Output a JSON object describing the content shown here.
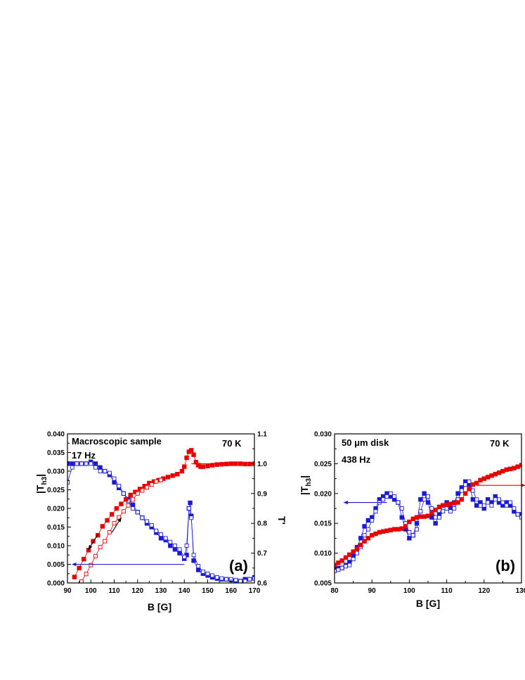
{
  "chart_data": [
    {
      "type": "scatter",
      "panel_label": "(a)",
      "annotations": [
        "Macroscopic sample",
        "17 Hz",
        "70 K"
      ],
      "xlabel": "B [G]",
      "ylabel_left": "|T",
      "ylabel_left_sub": "h3",
      "ylabel_left_end": "|",
      "ylabel_right": "T'",
      "xlim": [
        90,
        170
      ],
      "ylim_left": [
        0.0,
        0.04
      ],
      "ylim_right": [
        0.6,
        1.1
      ],
      "xticks": [
        "90",
        "100",
        "110",
        "120",
        "130",
        "140",
        "150",
        "160",
        "170"
      ],
      "yticks_left": [
        "0.000",
        "0.005",
        "0.010",
        "0.015",
        "0.020",
        "0.025",
        "0.030",
        "0.035",
        "0.040"
      ],
      "yticks_right": [
        "0.6",
        "0.7",
        "0.8",
        "0.9",
        "1.0",
        "1.1"
      ],
      "series": [
        {
          "axis": "left",
          "color": "#1a1ad6",
          "marker": "filled-square",
          "x": [
            90,
            92,
            94,
            96,
            98,
            100,
            102,
            104,
            106,
            108,
            110,
            112,
            114,
            116,
            118,
            120,
            122,
            124,
            126,
            128,
            130,
            132,
            134,
            136,
            138,
            140,
            141,
            142,
            142.5,
            143,
            144,
            146,
            148,
            150,
            152,
            154,
            156,
            158,
            160,
            162,
            164,
            166,
            168,
            170
          ],
          "y": [
            0.032,
            0.032,
            0.032,
            0.032,
            0.032,
            0.0325,
            0.032,
            0.031,
            0.03,
            0.029,
            0.027,
            0.0255,
            0.024,
            0.0225,
            0.021,
            0.019,
            0.0175,
            0.016,
            0.015,
            0.0135,
            0.012,
            0.0115,
            0.01,
            0.009,
            0.008,
            0.0065,
            0.0075,
            0.02,
            0.0215,
            0.018,
            0.006,
            0.0035,
            0.0025,
            0.002,
            0.0015,
            0.0012,
            0.001,
            0.001,
            0.0008,
            0.0005,
            0.0005,
            0.001,
            0.001,
            0.0015
          ]
        },
        {
          "axis": "left",
          "color": "#1a1ad6",
          "marker": "open-square",
          "x": [
            90,
            92,
            94,
            96,
            98,
            100,
            102,
            104,
            106,
            108,
            110,
            112,
            114,
            116,
            118,
            120,
            122,
            124,
            126,
            128,
            130,
            132,
            134,
            136,
            138,
            140,
            141,
            142,
            143,
            144,
            146,
            148,
            150,
            152,
            154,
            156,
            158,
            160,
            162,
            164,
            166,
            168,
            170
          ],
          "y": [
            0.027,
            0.031,
            0.032,
            0.032,
            0.032,
            0.032,
            0.031,
            0.03,
            0.03,
            0.0295,
            0.028,
            0.026,
            0.024,
            0.022,
            0.02,
            0.019,
            0.0175,
            0.0165,
            0.0155,
            0.014,
            0.013,
            0.012,
            0.011,
            0.01,
            0.009,
            0.007,
            0.01,
            0.02,
            0.0175,
            0.0075,
            0.0045,
            0.003,
            0.0025,
            0.002,
            0.0015,
            0.0012,
            0.001,
            0.001,
            0.0008,
            0.0005,
            0.0005,
            0.001,
            0.0012
          ]
        },
        {
          "axis": "right",
          "color": "#e60000",
          "marker": "filled-square",
          "x": [
            93,
            95,
            97,
            99,
            101,
            103,
            105,
            107,
            109,
            111,
            113,
            115,
            117,
            119,
            121,
            123,
            125,
            127,
            129,
            131,
            133,
            135,
            137,
            139,
            140,
            141,
            142,
            143,
            144,
            145,
            146,
            147,
            148,
            150,
            152,
            154,
            156,
            158,
            160,
            162,
            164,
            166,
            168,
            170
          ],
          "y": [
            0.62,
            0.65,
            0.68,
            0.71,
            0.74,
            0.76,
            0.79,
            0.81,
            0.83,
            0.85,
            0.865,
            0.88,
            0.895,
            0.905,
            0.915,
            0.925,
            0.935,
            0.94,
            0.945,
            0.95,
            0.955,
            0.96,
            0.965,
            0.975,
            0.99,
            1.02,
            1.04,
            1.045,
            1.03,
            1.005,
            0.995,
            0.99,
            0.99,
            0.992,
            0.995,
            0.997,
            0.998,
            0.999,
            1.0,
            1.0,
            1.0,
            0.999,
            0.999,
            1.0
          ]
        },
        {
          "axis": "right",
          "color": "#e60000",
          "marker": "open-square",
          "x": [
            96,
            98,
            100,
            102,
            104,
            106,
            108,
            110,
            112,
            114,
            116,
            118,
            120,
            122,
            124,
            126,
            128,
            130
          ],
          "y": [
            0.605,
            0.63,
            0.66,
            0.69,
            0.72,
            0.74,
            0.77,
            0.8,
            0.82,
            0.84,
            0.86,
            0.88,
            0.9,
            0.91,
            0.92,
            0.93,
            0.94,
            0.945
          ]
        }
      ],
      "arrows": [
        {
          "from": [
            143,
            1.0
          ],
          "to": [
            158,
            1.0
          ],
          "axis": "right",
          "color": "#e60000"
        },
        {
          "from": [
            140,
            0.005
          ],
          "to": [
            92,
            0.005
          ],
          "axis": "left",
          "color": "#1a1ad6"
        },
        {
          "from": [
            103,
            0.013
          ],
          "to": [
            99,
            0.009
          ],
          "axis": "left",
          "color": "#000000"
        },
        {
          "from": [
            109,
            0.0135
          ],
          "to": [
            113,
            0.0175
          ],
          "axis": "left",
          "color": "#000000"
        }
      ]
    },
    {
      "type": "scatter",
      "panel_label": "(b)",
      "annotations": [
        "50 μm disk",
        "438 Hz",
        "70 K"
      ],
      "xlabel": "B [G]",
      "ylabel_left": "|T",
      "ylabel_left_sub": "h3",
      "ylabel_left_end": "|",
      "xlim": [
        80,
        130
      ],
      "ylim_left": [
        0.005,
        0.03
      ],
      "ylim_right": [
        0.0,
        1.0
      ],
      "xticks": [
        "80",
        "90",
        "100",
        "110",
        "120",
        "130"
      ],
      "yticks_left": [
        "0.005",
        "0.010",
        "0.015",
        "0.020",
        "0.025",
        "0.030"
      ],
      "series": [
        {
          "axis": "left",
          "color": "#1a1ad6",
          "marker": "filled-square",
          "x": [
            80,
            81,
            82,
            83,
            84,
            85,
            86,
            87,
            88,
            89,
            90,
            91,
            92,
            93,
            94,
            95,
            96,
            97,
            98,
            99,
            100,
            101,
            102,
            103,
            104,
            105,
            106,
            107,
            108,
            109,
            110,
            111,
            112,
            113,
            114,
            115,
            116,
            117,
            118,
            119,
            120,
            121,
            122,
            123,
            124,
            125,
            126,
            127,
            128,
            129,
            130
          ],
          "y": [
            0.0075,
            0.0075,
            0.0075,
            0.008,
            0.0085,
            0.0095,
            0.011,
            0.0125,
            0.0145,
            0.0155,
            0.016,
            0.0175,
            0.019,
            0.0195,
            0.02,
            0.0195,
            0.019,
            0.0185,
            0.016,
            0.014,
            0.0125,
            0.013,
            0.015,
            0.019,
            0.02,
            0.0185,
            0.016,
            0.015,
            0.0165,
            0.018,
            0.0185,
            0.0175,
            0.0185,
            0.02,
            0.021,
            0.022,
            0.0215,
            0.019,
            0.018,
            0.0185,
            0.0175,
            0.019,
            0.0185,
            0.0195,
            0.0185,
            0.018,
            0.0185,
            0.018,
            0.017,
            0.0165,
            0.0165
          ]
        },
        {
          "axis": "left",
          "color": "#1a1ad6",
          "marker": "open-square",
          "x": [
            80,
            81,
            82,
            83,
            84,
            85,
            86,
            87,
            88,
            89,
            90,
            91,
            92,
            93,
            94,
            95,
            96,
            97,
            98,
            99,
            100,
            101,
            102,
            103,
            104,
            105,
            106,
            107,
            108,
            109,
            110,
            111,
            112,
            113,
            114,
            115,
            116,
            117,
            118,
            119,
            120,
            121,
            122,
            123,
            124,
            125,
            126,
            127,
            128,
            129,
            130
          ],
          "y": [
            0.007,
            0.0072,
            0.0075,
            0.0078,
            0.008,
            0.009,
            0.01,
            0.011,
            0.013,
            0.014,
            0.0155,
            0.017,
            0.0185,
            0.019,
            0.0195,
            0.02,
            0.0195,
            0.0185,
            0.0175,
            0.015,
            0.0135,
            0.013,
            0.014,
            0.017,
            0.019,
            0.0195,
            0.0175,
            0.016,
            0.016,
            0.017,
            0.0175,
            0.017,
            0.0175,
            0.019,
            0.0205,
            0.0215,
            0.022,
            0.0205,
            0.019,
            0.018,
            0.018,
            0.0185,
            0.018,
            0.019,
            0.019,
            0.0185,
            0.018,
            0.0185,
            0.0175,
            0.0165,
            0.016
          ]
        },
        {
          "axis": "right",
          "color": "#e60000",
          "marker": "filled-square",
          "x": [
            80,
            81,
            82,
            83,
            84,
            85,
            86,
            87,
            88,
            89,
            90,
            91,
            92,
            93,
            94,
            95,
            96,
            97,
            98,
            99,
            100,
            101,
            102,
            103,
            104,
            105,
            106,
            107,
            108,
            109,
            110,
            111,
            112,
            113,
            114,
            115,
            116,
            117,
            118,
            119,
            120,
            121,
            122,
            123,
            124,
            125,
            126,
            127,
            128,
            129,
            130
          ],
          "y": [
            0.12,
            0.135,
            0.15,
            0.17,
            0.19,
            0.21,
            0.23,
            0.255,
            0.28,
            0.3,
            0.32,
            0.33,
            0.34,
            0.345,
            0.35,
            0.355,
            0.36,
            0.36,
            0.365,
            0.38,
            0.41,
            0.43,
            0.44,
            0.445,
            0.445,
            0.45,
            0.47,
            0.49,
            0.51,
            0.52,
            0.525,
            0.53,
            0.535,
            0.54,
            0.56,
            0.6,
            0.63,
            0.66,
            0.67,
            0.69,
            0.7,
            0.71,
            0.72,
            0.73,
            0.74,
            0.75,
            0.76,
            0.765,
            0.77,
            0.78,
            0.79
          ]
        }
      ],
      "arrows": [
        {
          "from": [
            94,
            0.0185
          ],
          "to": [
            82.5,
            0.0185
          ],
          "axis": "left",
          "color": "#1a1ad6"
        },
        {
          "from": [
            118,
            0.655
          ],
          "to": [
            131,
            0.655
          ],
          "axis": "right",
          "color": "#e60000"
        }
      ]
    }
  ]
}
